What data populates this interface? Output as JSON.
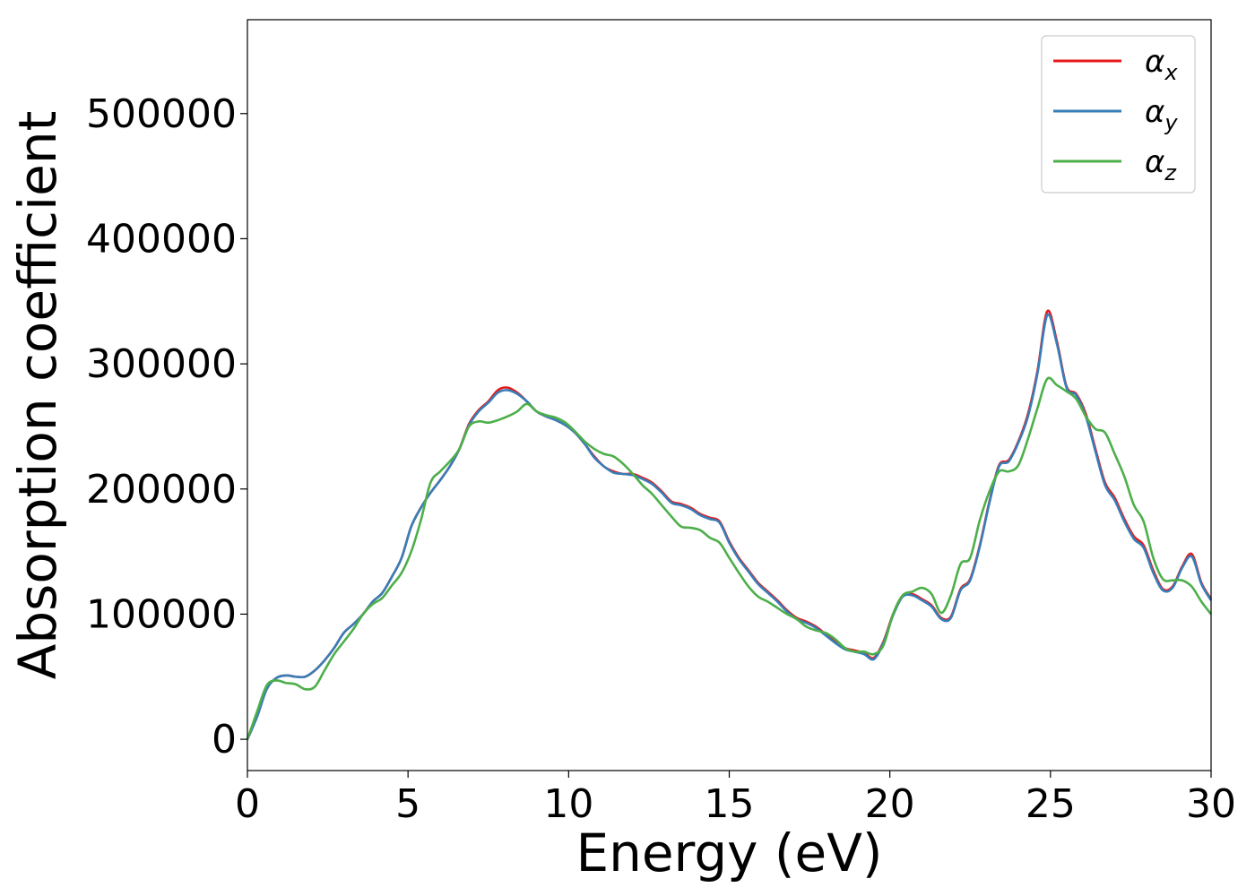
{
  "chart_data": {
    "type": "line",
    "xlabel": "Energy (eV)",
    "ylabel": "Absorption coefficient",
    "xlim": [
      0,
      30
    ],
    "ylim": [
      -25000,
      575000
    ],
    "xticks": [
      0,
      5,
      10,
      15,
      20,
      25,
      30
    ],
    "xtick_labels": [
      "0",
      "5",
      "10",
      "15",
      "20",
      "25",
      "30"
    ],
    "yticks": [
      0,
      100000,
      200000,
      300000,
      400000,
      500000
    ],
    "ytick_labels": [
      "0",
      "100000",
      "200000",
      "300000",
      "400000",
      "500000"
    ],
    "grid": false,
    "legend_position": "top-right",
    "series": [
      {
        "name": "α_x",
        "label_base": "α",
        "label_sub": "x",
        "color": "#e41a1c",
        "x": [
          0,
          0.3,
          0.6,
          0.9,
          1.2,
          1.5,
          1.8,
          2.1,
          2.4,
          2.7,
          3.0,
          3.3,
          3.6,
          3.9,
          4.2,
          4.5,
          4.8,
          5.1,
          5.4,
          5.7,
          6.0,
          6.3,
          6.6,
          6.9,
          7.2,
          7.5,
          7.8,
          8.1,
          8.4,
          8.7,
          9.0,
          9.3,
          9.6,
          9.9,
          10.2,
          10.5,
          10.8,
          11.1,
          11.4,
          11.7,
          12.0,
          12.3,
          12.6,
          12.9,
          13.2,
          13.5,
          13.8,
          14.1,
          14.4,
          14.7,
          15.0,
          15.3,
          15.6,
          15.9,
          16.2,
          16.5,
          16.8,
          17.1,
          17.4,
          17.7,
          18.0,
          18.3,
          18.6,
          18.9,
          19.2,
          19.5,
          19.8,
          20.1,
          20.4,
          20.7,
          21.0,
          21.3,
          21.6,
          21.9,
          22.2,
          22.5,
          22.8,
          23.1,
          23.4,
          23.7,
          24.0,
          24.3,
          24.6,
          24.9,
          25.2,
          25.5,
          25.8,
          26.1,
          26.4,
          26.7,
          27.0,
          27.3,
          27.6,
          27.9,
          28.2,
          28.5,
          28.8,
          29.1,
          29.4,
          29.7,
          30.0
        ],
        "y": [
          0,
          18000,
          40000,
          49000,
          51000,
          50000,
          50000,
          55000,
          63000,
          73000,
          85000,
          92000,
          100000,
          110000,
          117000,
          130000,
          145000,
          170000,
          185000,
          197000,
          207000,
          218000,
          232000,
          252000,
          263000,
          270000,
          279000,
          281000,
          277000,
          270000,
          262000,
          258000,
          255000,
          251000,
          245000,
          236000,
          226000,
          218000,
          214000,
          212000,
          212000,
          209000,
          205000,
          198000,
          190000,
          188000,
          185000,
          180000,
          177000,
          174000,
          158000,
          145000,
          135000,
          125000,
          118000,
          111000,
          103000,
          97000,
          94000,
          90000,
          84000,
          78000,
          73000,
          71000,
          69000,
          65000,
          78000,
          100000,
          115000,
          116000,
          112000,
          107000,
          97000,
          98000,
          120000,
          128000,
          155000,
          190000,
          219000,
          223000,
          238000,
          260000,
          295000,
          342000,
          318000,
          282000,
          276000,
          260000,
          232000,
          205000,
          193000,
          176000,
          162000,
          155000,
          135000,
          120000,
          122000,
          138000,
          148000,
          125000,
          112000
        ]
      },
      {
        "name": "α_y",
        "label_base": "α",
        "label_sub": "y",
        "color": "#377eb8",
        "x": [
          0,
          0.3,
          0.6,
          0.9,
          1.2,
          1.5,
          1.8,
          2.1,
          2.4,
          2.7,
          3.0,
          3.3,
          3.6,
          3.9,
          4.2,
          4.5,
          4.8,
          5.1,
          5.4,
          5.7,
          6.0,
          6.3,
          6.6,
          6.9,
          7.2,
          7.5,
          7.8,
          8.1,
          8.4,
          8.7,
          9.0,
          9.3,
          9.6,
          9.9,
          10.2,
          10.5,
          10.8,
          11.1,
          11.4,
          11.7,
          12.0,
          12.3,
          12.6,
          12.9,
          13.2,
          13.5,
          13.8,
          14.1,
          14.4,
          14.7,
          15.0,
          15.3,
          15.6,
          15.9,
          16.2,
          16.5,
          16.8,
          17.1,
          17.4,
          17.7,
          18.0,
          18.3,
          18.6,
          18.9,
          19.2,
          19.5,
          19.8,
          20.1,
          20.4,
          20.7,
          21.0,
          21.3,
          21.6,
          21.9,
          22.2,
          22.5,
          22.8,
          23.1,
          23.4,
          23.7,
          24.0,
          24.3,
          24.6,
          24.9,
          25.2,
          25.5,
          25.8,
          26.1,
          26.4,
          26.7,
          27.0,
          27.3,
          27.6,
          27.9,
          28.2,
          28.5,
          28.8,
          29.1,
          29.4,
          29.7,
          30.0
        ],
        "y": [
          0,
          18000,
          40000,
          49000,
          51000,
          50000,
          50000,
          55000,
          63000,
          73000,
          85000,
          92000,
          100000,
          110000,
          117000,
          130000,
          145000,
          170000,
          185000,
          197000,
          207000,
          218000,
          232000,
          251000,
          262000,
          269000,
          277000,
          279000,
          276000,
          270000,
          262000,
          258000,
          255000,
          251000,
          245000,
          236000,
          225000,
          218000,
          213000,
          212000,
          211000,
          208000,
          204000,
          197000,
          189000,
          187000,
          184000,
          179000,
          176000,
          173000,
          157000,
          144000,
          134000,
          124000,
          117000,
          110000,
          102000,
          96000,
          93000,
          89000,
          83000,
          77000,
          72000,
          70000,
          68000,
          64000,
          77000,
          99000,
          114000,
          115000,
          111000,
          106000,
          96000,
          97000,
          119000,
          127000,
          154000,
          189000,
          218000,
          222000,
          237000,
          258000,
          293000,
          339000,
          316000,
          281000,
          275000,
          258000,
          230000,
          203000,
          191000,
          174000,
          160000,
          153000,
          133000,
          119000,
          121000,
          137000,
          146000,
          124000,
          111000
        ]
      },
      {
        "name": "α_z",
        "label_base": "α",
        "label_sub": "z",
        "color": "#4daf4a",
        "x": [
          0,
          0.3,
          0.6,
          0.9,
          1.2,
          1.5,
          1.8,
          2.1,
          2.4,
          2.7,
          3.0,
          3.3,
          3.6,
          3.9,
          4.2,
          4.5,
          4.8,
          5.1,
          5.4,
          5.7,
          6.0,
          6.3,
          6.6,
          6.9,
          7.2,
          7.5,
          7.8,
          8.1,
          8.4,
          8.7,
          9.0,
          9.3,
          9.6,
          9.9,
          10.2,
          10.5,
          10.8,
          11.1,
          11.4,
          11.7,
          12.0,
          12.3,
          12.6,
          12.9,
          13.2,
          13.5,
          13.8,
          14.1,
          14.4,
          14.7,
          15.0,
          15.3,
          15.6,
          15.9,
          16.2,
          16.5,
          16.8,
          17.1,
          17.4,
          17.7,
          18.0,
          18.3,
          18.6,
          18.9,
          19.2,
          19.5,
          19.8,
          20.1,
          20.4,
          20.7,
          21.0,
          21.3,
          21.6,
          21.9,
          22.2,
          22.5,
          22.8,
          23.1,
          23.4,
          23.7,
          24.0,
          24.3,
          24.6,
          24.9,
          25.2,
          25.5,
          25.8,
          26.1,
          26.4,
          26.7,
          27.0,
          27.3,
          27.6,
          27.9,
          28.2,
          28.5,
          28.8,
          29.1,
          29.4,
          29.7,
          30.0
        ],
        "y": [
          0,
          22000,
          43000,
          47000,
          45000,
          44000,
          40000,
          42000,
          55000,
          68000,
          78000,
          88000,
          100000,
          108000,
          113000,
          123000,
          133000,
          150000,
          175000,
          205000,
          214000,
          222000,
          232000,
          250000,
          254000,
          253000,
          255000,
          258000,
          262000,
          268000,
          262000,
          259000,
          257000,
          253000,
          246000,
          238000,
          232000,
          228000,
          226000,
          220000,
          212000,
          203000,
          196000,
          187000,
          178000,
          170000,
          169000,
          167000,
          161000,
          157000,
          145000,
          133000,
          122000,
          114000,
          110000,
          105000,
          100000,
          96000,
          90000,
          87000,
          85000,
          80000,
          73000,
          70000,
          70000,
          68000,
          75000,
          100000,
          115000,
          118000,
          121000,
          116000,
          101000,
          115000,
          140000,
          145000,
          175000,
          198000,
          214000,
          214000,
          219000,
          240000,
          265000,
          288000,
          283000,
          278000,
          272000,
          258000,
          248000,
          245000,
          228000,
          210000,
          187000,
          174000,
          145000,
          128000,
          127000,
          127000,
          122000,
          110000,
          100000
        ]
      }
    ]
  }
}
